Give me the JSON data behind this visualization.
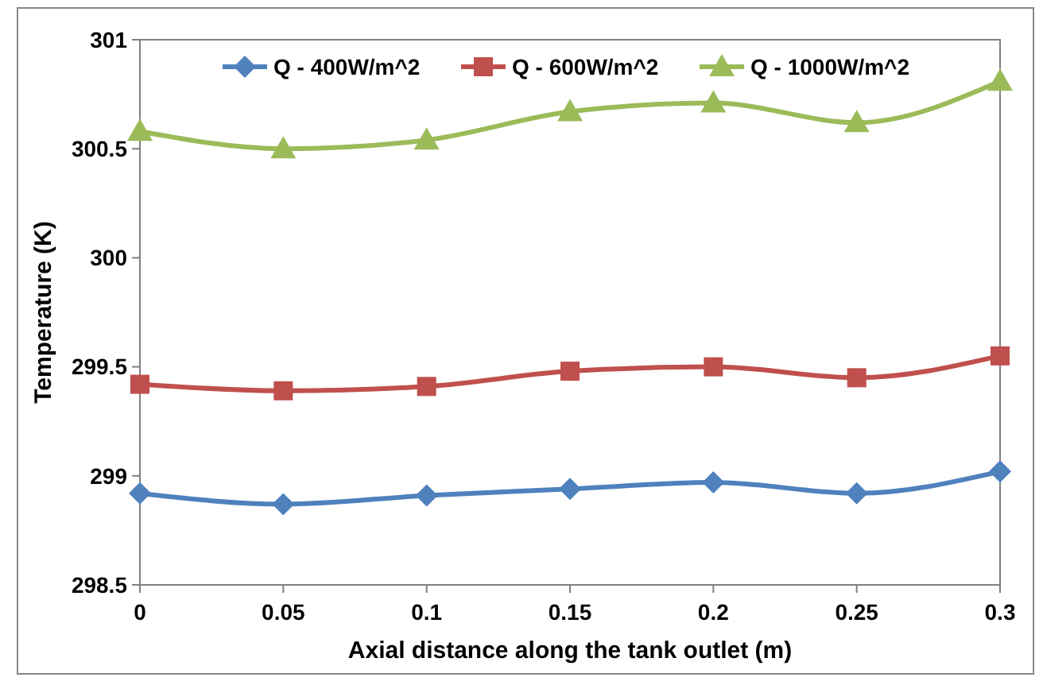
{
  "chart_data": {
    "type": "line",
    "xlabel": "Axial distance along the tank outlet (m)",
    "ylabel": "Temperature (K)",
    "x": [
      0,
      0.05,
      0.1,
      0.15,
      0.2,
      0.25,
      0.3
    ],
    "xlim": [
      0,
      0.3
    ],
    "xticks": [
      0,
      {
        "value": 0.05,
        "label": "0.05"
      },
      {
        "value": 0.1,
        "label": "0.1"
      },
      {
        "value": 0.15,
        "label": "0.15"
      },
      {
        "value": 0.2,
        "label": "0.2"
      },
      {
        "value": 0.25,
        "label": "0.25"
      },
      {
        "value": 0.3,
        "label": "0.3"
      }
    ],
    "ylim": [
      298.5,
      301
    ],
    "yticks": [
      298.5,
      299,
      299.5,
      300,
      300.5,
      301
    ],
    "grid": false,
    "legend": "top",
    "line_style": "solid",
    "series": [
      {
        "name": "Q - 400W/m^2",
        "color": "#4f81bd",
        "marker": "diamond",
        "values": [
          298.92,
          298.87,
          298.91,
          298.94,
          298.97,
          298.92,
          299.02
        ]
      },
      {
        "name": "Q - 600W/m^2",
        "color": "#c0504d",
        "marker": "square",
        "values": [
          299.42,
          299.39,
          299.41,
          299.48,
          299.5,
          299.45,
          299.55
        ]
      },
      {
        "name": "Q - 1000W/m^2",
        "color": "#9bbb59",
        "marker": "triangle",
        "values": [
          300.58,
          300.5,
          300.54,
          300.67,
          300.71,
          300.62,
          300.81
        ]
      }
    ]
  }
}
